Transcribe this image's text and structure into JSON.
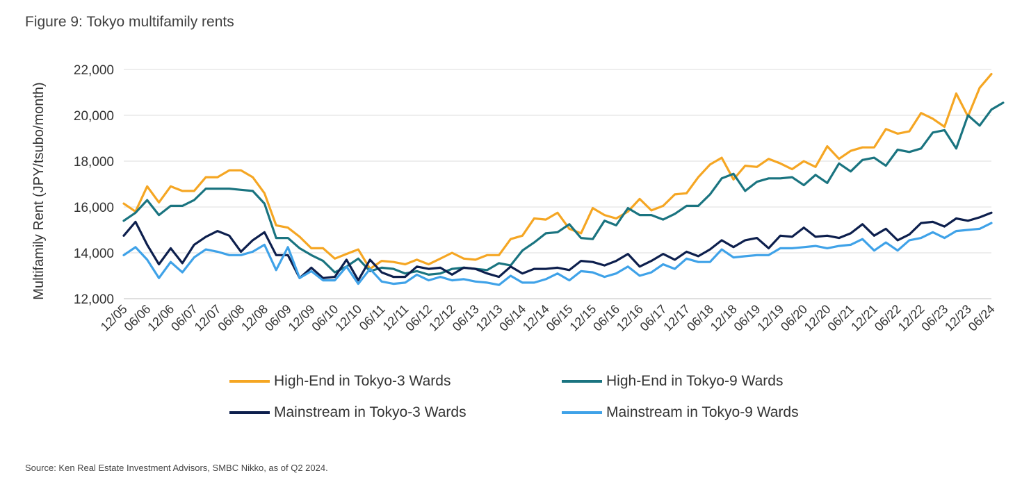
{
  "header": {
    "title": "Figure 9: Tokyo multifamily rents"
  },
  "footer": {
    "source": "Source: Ken Real Estate Investment Advisors, SMBC Nikko, as of Q2 2024."
  },
  "chart_data": {
    "type": "line",
    "title": "Figure 9: Tokyo multifamily rents",
    "ylabel": "Multifamily Rent (JPY/tsubo/month)",
    "xlabel": "",
    "ylim": [
      12000,
      22000
    ],
    "yticks": [
      12000,
      14000,
      16000,
      18000,
      20000,
      22000
    ],
    "ytick_labels": [
      "12,000",
      "14,000",
      "16,000",
      "18,000",
      "20,000",
      "22,000"
    ],
    "grid": "horizontal",
    "legend_position": "bottom",
    "x_period": "quarterly",
    "x_start": "12/05",
    "x_end": "06/24",
    "x_tick_labels": [
      "12/05",
      "06/06",
      "12/06",
      "06/07",
      "12/07",
      "06/08",
      "12/08",
      "06/09",
      "12/09",
      "06/10",
      "12/10",
      "06/11",
      "12/11",
      "06/12",
      "12/12",
      "06/13",
      "12/13",
      "06/14",
      "12/14",
      "06/15",
      "12/15",
      "06/16",
      "12/16",
      "06/17",
      "12/17",
      "06/18",
      "12/18",
      "06/19",
      "12/19",
      "06/20",
      "12/20",
      "06/21",
      "12/21",
      "06/22",
      "12/22",
      "06/23",
      "12/23",
      "06/24"
    ],
    "series": [
      {
        "name": "High-End in Tokyo-3 Wards",
        "color": "#F5A623",
        "values": [
          16150,
          15800,
          16900,
          16200,
          16900,
          16700,
          16700,
          17300,
          17300,
          17600,
          17600,
          17300,
          16600,
          15200,
          15100,
          14700,
          14200,
          14200,
          13750,
          13950,
          14150,
          13300,
          13650,
          13600,
          13500,
          13700,
          13500,
          13750,
          14000,
          13750,
          13700,
          13900,
          13900,
          14600,
          14750,
          15500,
          15450,
          15750,
          15050,
          14850,
          15950,
          15650,
          15500,
          15800,
          16350,
          15850,
          16050,
          16550,
          16600,
          17300,
          17850,
          18150,
          17200,
          17800,
          17750,
          18100,
          17900,
          17650,
          18000,
          17750,
          18650,
          18100,
          18450,
          18600,
          18600,
          19400,
          19200,
          19300,
          20100,
          19850,
          19500,
          20950,
          19950,
          21200,
          21800
        ]
      },
      {
        "name": "High-End in Tokyo-9 Wards",
        "color": "#1A7480",
        "values": [
          15400,
          15750,
          16300,
          15650,
          16050,
          16050,
          16300,
          16800,
          16800,
          16800,
          16750,
          16700,
          16150,
          14650,
          14650,
          14200,
          13900,
          13650,
          13150,
          13400,
          13750,
          13200,
          13350,
          13300,
          13100,
          13200,
          13050,
          13100,
          13300,
          13350,
          13300,
          13250,
          13550,
          13450,
          14100,
          14450,
          14850,
          14900,
          15250,
          14650,
          14600,
          15400,
          15200,
          15950,
          15650,
          15650,
          15450,
          15700,
          16050,
          16050,
          16550,
          17250,
          17450,
          16700,
          17100,
          17250,
          17250,
          17300,
          16950,
          17400,
          17050,
          17900,
          17550,
          18050,
          18150,
          17800,
          18500,
          18400,
          18550,
          19250,
          19350,
          18550,
          20000,
          19550,
          20250,
          20550
        ]
      },
      {
        "name": "Mainstream in Tokyo-3 Wards",
        "color": "#0D1F4D",
        "values": [
          14750,
          15350,
          14350,
          13500,
          14200,
          13550,
          14350,
          14700,
          14950,
          14750,
          14050,
          14550,
          14900,
          13900,
          13900,
          12900,
          13350,
          12900,
          12950,
          13700,
          12800,
          13700,
          13150,
          12950,
          12950,
          13400,
          13300,
          13350,
          13050,
          13350,
          13300,
          13100,
          12950,
          13400,
          13100,
          13300,
          13300,
          13350,
          13250,
          13650,
          13600,
          13450,
          13650,
          13950,
          13400,
          13650,
          13950,
          13700,
          14050,
          13850,
          14150,
          14550,
          14250,
          14550,
          14650,
          14200,
          14750,
          14700,
          15100,
          14700,
          14750,
          14650,
          14850,
          15250,
          14750,
          15050,
          14550,
          14800,
          15300,
          15350,
          15150,
          15500,
          15400,
          15550,
          15750
        ]
      },
      {
        "name": "Mainstream in Tokyo-9 Wards",
        "color": "#3FA2E8",
        "values": [
          13900,
          14250,
          13700,
          12900,
          13600,
          13150,
          13800,
          14150,
          14050,
          13900,
          13900,
          14050,
          14350,
          13250,
          14250,
          12900,
          13200,
          12800,
          12800,
          13400,
          12650,
          13300,
          12750,
          12650,
          12700,
          13050,
          12800,
          12950,
          12800,
          12850,
          12750,
          12700,
          12600,
          13000,
          12700,
          12700,
          12850,
          13100,
          12800,
          13200,
          13150,
          12950,
          13100,
          13400,
          13000,
          13150,
          13500,
          13300,
          13750,
          13600,
          13600,
          14150,
          13800,
          13850,
          13900,
          13900,
          14200,
          14200,
          14250,
          14300,
          14200,
          14300,
          14350,
          14600,
          14100,
          14450,
          14100,
          14550,
          14650,
          14900,
          14650,
          14950,
          15000,
          15050,
          15300
        ]
      }
    ]
  }
}
